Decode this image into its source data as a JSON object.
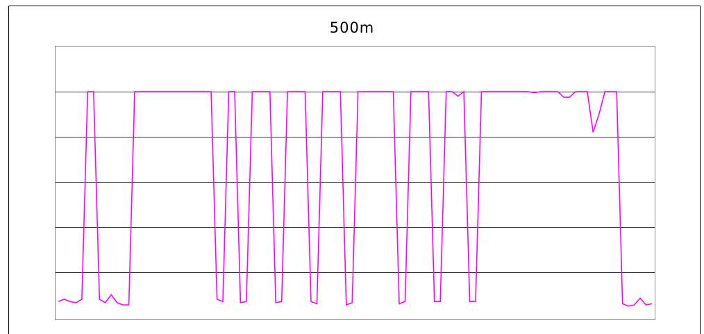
{
  "chart_data": {
    "type": "line",
    "title": "500m",
    "xlabel": "",
    "ylabel": "",
    "grid": true,
    "ylim": [
      0,
      1.2
    ],
    "series": [
      {
        "color": "#ff00ff",
        "x": [
          0,
          1,
          2,
          3,
          4,
          5,
          6,
          7,
          8,
          9,
          10,
          11,
          12,
          13,
          14,
          15,
          16,
          17,
          18,
          19,
          20,
          21,
          22,
          23,
          24,
          25,
          26,
          27,
          28,
          29,
          30,
          31,
          32,
          33,
          34,
          35,
          36,
          37,
          38,
          39,
          40,
          41,
          42,
          43,
          44,
          45,
          46,
          47,
          48,
          49,
          50,
          51,
          52,
          53,
          54,
          55,
          56,
          57,
          58,
          59,
          60,
          61,
          62,
          63,
          64,
          65,
          66,
          67,
          68,
          69,
          70,
          71,
          72,
          73,
          74,
          75,
          76,
          77,
          78,
          79,
          80,
          81,
          82,
          83,
          84,
          85,
          86,
          87,
          88,
          89,
          90,
          91,
          92,
          93,
          94,
          95,
          96,
          97,
          98,
          99,
          100,
          101
        ],
        "y": [
          0.07,
          0.08,
          0.07,
          0.065,
          0.08,
          1.0,
          1.0,
          0.08,
          0.065,
          0.1,
          0.065,
          0.055,
          0.055,
          1.0,
          1.0,
          1.0,
          1.0,
          1.0,
          1.0,
          1.0,
          1.0,
          1.0,
          1.0,
          1.0,
          1.0,
          1.0,
          1.0,
          0.08,
          0.07,
          1.0,
          1.0,
          0.065,
          0.07,
          1.0,
          1.0,
          1.0,
          1.0,
          0.065,
          0.07,
          1.0,
          1.0,
          1.0,
          1.0,
          0.07,
          0.06,
          1.0,
          1.0,
          1.0,
          1.0,
          0.055,
          0.065,
          1.0,
          1.0,
          1.0,
          1.0,
          1.0,
          1.0,
          1.0,
          0.06,
          0.07,
          1.0,
          1.0,
          1.0,
          1.0,
          0.07,
          0.07,
          1.0,
          1.0,
          0.98,
          1.0,
          0.07,
          0.07,
          1.0,
          1.0,
          1.0,
          1.0,
          1.0,
          1.0,
          1.0,
          1.0,
          1.0,
          0.995,
          1.0,
          1.0,
          1.0,
          1.0,
          0.975,
          0.975,
          1.0,
          1.0,
          1.0,
          0.82,
          0.9,
          1.0,
          1.0,
          1.0,
          0.06,
          0.05,
          0.055,
          0.085,
          0.055,
          0.06
        ]
      }
    ]
  }
}
